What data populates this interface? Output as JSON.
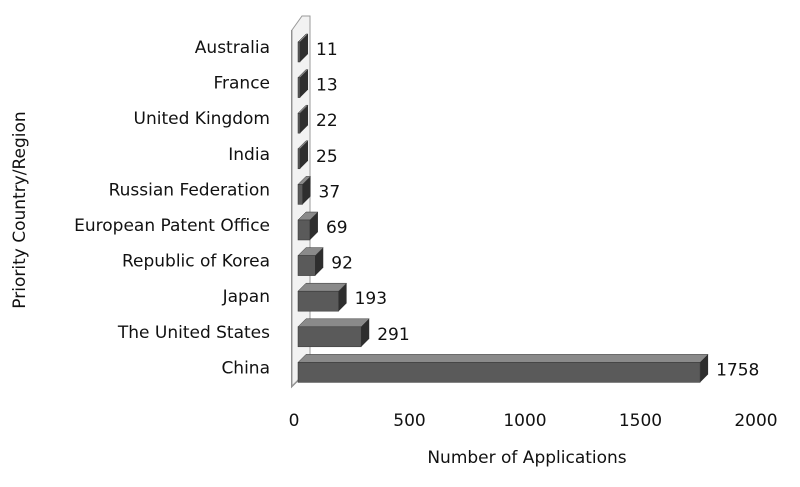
{
  "chart_data": {
    "type": "bar3d_horizontal",
    "x_label": "Number of Applications",
    "y_label": "Priority Country/Region",
    "categories": [
      "Australia",
      "France",
      "United Kingdom",
      "India",
      "Russian Federation",
      "European Patent Office",
      "Republic of Korea",
      "Japan",
      "The United States",
      "China"
    ],
    "values": [
      11,
      13,
      22,
      25,
      37,
      69,
      92,
      193,
      291,
      1758
    ],
    "color": "#5a5a5a",
    "xlim": [
      0,
      2000
    ],
    "xticks": [
      0,
      500,
      1000,
      1500,
      2000
    ]
  }
}
